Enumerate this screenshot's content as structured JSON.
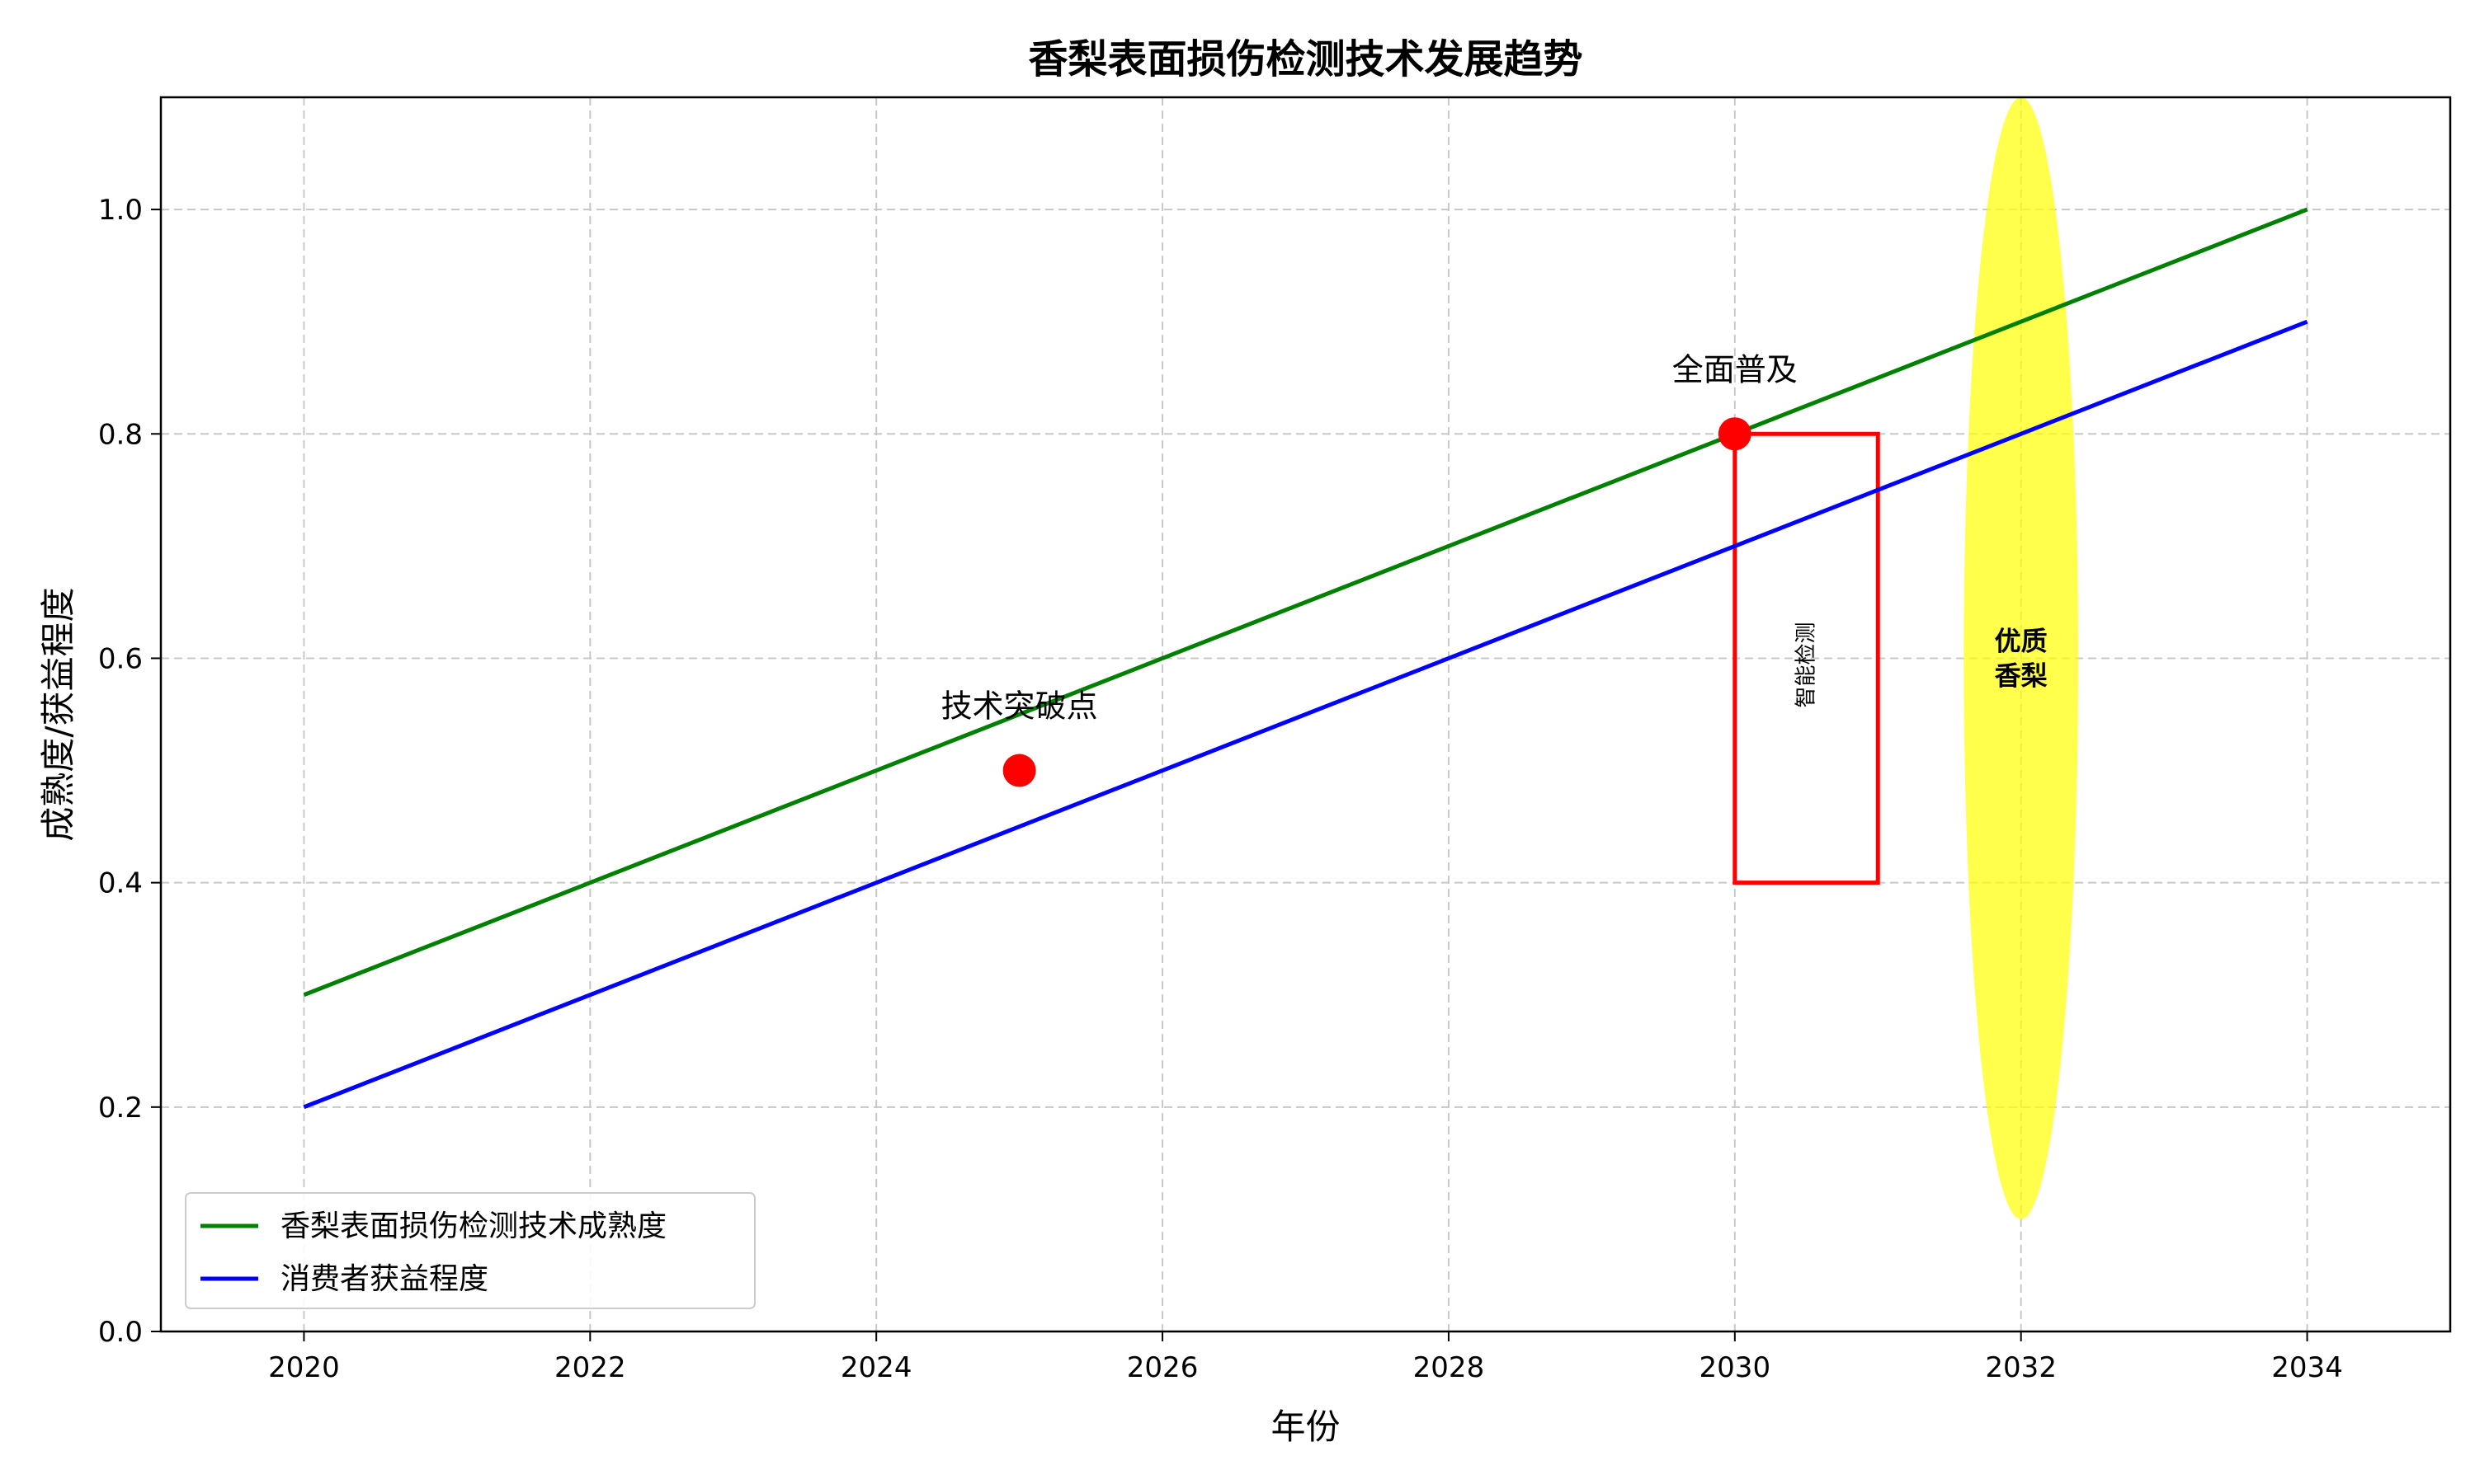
{
  "chart_data": {
    "type": "line",
    "title": "香梨表面损伤检测技术发展趋势",
    "xlabel": "年份",
    "ylabel": "成熟度/获益程度",
    "xlim": [
      2019,
      2035
    ],
    "ylim": [
      0.0,
      1.1
    ],
    "xticks": [
      2020,
      2022,
      2024,
      2026,
      2028,
      2030,
      2032,
      2034
    ],
    "yticks": [
      0.0,
      0.2,
      0.4,
      0.6,
      0.8,
      1.0
    ],
    "xtick_labels": [
      "2020",
      "2022",
      "2024",
      "2026",
      "2028",
      "2030",
      "2032",
      "2034"
    ],
    "ytick_labels": [
      "0.0",
      "0.2",
      "0.4",
      "0.6",
      "0.8",
      "1.0"
    ],
    "grid": true,
    "legend_position": "bottom-left",
    "series": [
      {
        "name": "香梨表面损伤检测技术成熟度",
        "color": "#008000",
        "x": [
          2020,
          2034
        ],
        "y": [
          0.3,
          1.0
        ]
      },
      {
        "name": "消费者获益程度",
        "color": "#0000ff",
        "x": [
          2020,
          2034
        ],
        "y": [
          0.2,
          0.9
        ]
      }
    ],
    "points": [
      {
        "x": 2025,
        "y": 0.5,
        "label": "技术突破点",
        "color": "#ff0000"
      },
      {
        "x": 2030,
        "y": 0.8,
        "label": "全面普及",
        "color": "#ff0000"
      }
    ],
    "rectangle": {
      "x0": 2030,
      "x1": 2031,
      "y0": 0.4,
      "y1": 0.8,
      "label": "智能检测",
      "color": "#ff0000"
    },
    "ellipse": {
      "cx": 2032,
      "cy": 0.6,
      "rx": 0.4,
      "ry": 0.5,
      "label_lines": [
        "优质",
        "香梨"
      ],
      "color": "#ffff00"
    }
  }
}
